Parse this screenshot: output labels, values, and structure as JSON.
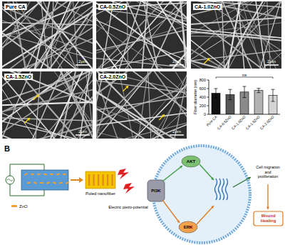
{
  "sem_images": [
    {
      "label": "Pure CA",
      "scale_bar": "2μm"
    },
    {
      "label": "CA-0.5ZnO",
      "scale_bar": "2μm"
    },
    {
      "label": "CA-1.0ZnO",
      "scale_bar": "2μm"
    },
    {
      "label": "CA-1.5ZnO",
      "scale_bar": "2μm"
    },
    {
      "label": "CA-2.0ZnO",
      "scale_bar": "2μm"
    }
  ],
  "chart_data": {
    "type": "bar",
    "y_label": "Fiber diameter (nm)",
    "categories": [
      "Pure CA",
      "CA-0.5ZnO",
      "CA-1.0ZnO",
      "CA-1.5ZnO",
      "CA-2.0ZnO"
    ],
    "values": [
      490,
      460,
      520,
      555,
      440
    ],
    "errors": [
      110,
      120,
      130,
      50,
      140
    ],
    "colors": [
      "#111111",
      "#555555",
      "#8a8a8a",
      "#b3b3b3",
      "#d4d4d4"
    ],
    "ylim": [
      0,
      800
    ],
    "yticks": [
      0,
      200,
      400,
      600,
      800
    ],
    "annotation": "ns"
  },
  "diagram": {
    "panel_label": "B",
    "nanofiber_label": "Poled nanofiber",
    "legend_label": "ZnO",
    "stimulus_label": "Electric piezo-potential",
    "pathway": [
      "PI3K",
      "AKT",
      "ERK"
    ],
    "outcome": "Cell migration and proliferation",
    "result": "Wound Healing"
  }
}
